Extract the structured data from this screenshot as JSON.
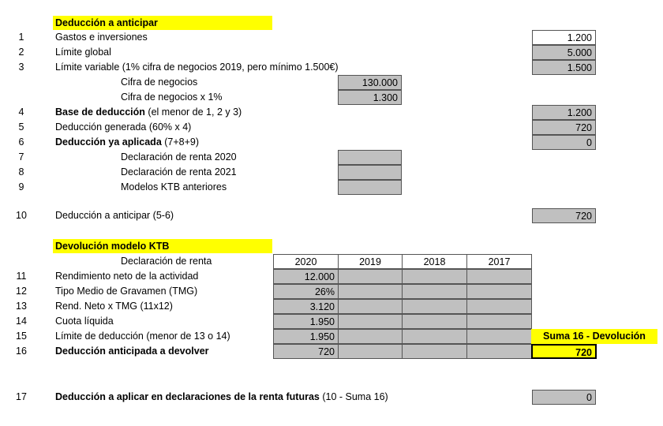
{
  "section1": {
    "title": "Deducción a anticipar",
    "rows": [
      {
        "n": "1",
        "label": "Gastos e inversiones",
        "value": "1.200"
      },
      {
        "n": "2",
        "label": "Límite global",
        "value": "5.000"
      },
      {
        "n": "3",
        "label": "Límite variable (1% cifra de negocios 2019, pero mínimo 1.500€)",
        "value": "1.500"
      },
      {
        "label": "Cifra de negocios",
        "value": "130.000"
      },
      {
        "label": "Cifra de negocios x 1%",
        "value": "1.300"
      },
      {
        "n": "4",
        "bold": "Base de deducción",
        "label": " (el menor de 1, 2 y 3)",
        "value": "1.200"
      },
      {
        "n": "5",
        "label": "Deducción generada (60% x 4)",
        "value": "720"
      },
      {
        "n": "6",
        "bold": "Deducción ya aplicada",
        "label": " (7+8+9)",
        "value": "0"
      },
      {
        "n": "7",
        "label": "Declaración de renta 2020",
        "value": ""
      },
      {
        "n": "8",
        "label": "Declaración de renta 2021",
        "value": ""
      },
      {
        "n": "9",
        "label": "Modelos KTB anteriores",
        "value": ""
      },
      {
        "n": "10",
        "label": "Deducción a anticipar (5-6)",
        "value": "720"
      }
    ]
  },
  "section2": {
    "title": "Devolución modelo KTB",
    "header_label": "Declaración de renta",
    "years": [
      "2020",
      "2019",
      "2018",
      "2017"
    ],
    "rows": [
      {
        "n": "11",
        "label": "Rendimiento neto de la actividad",
        "values": [
          "12.000",
          "",
          "",
          ""
        ]
      },
      {
        "n": "12",
        "label": "Tipo Medio de Gravamen (TMG)",
        "values": [
          "26%",
          "",
          "",
          ""
        ]
      },
      {
        "n": "13",
        "label": "Rend. Neto x TMG (11x12)",
        "values": [
          "3.120",
          "",
          "",
          ""
        ]
      },
      {
        "n": "14",
        "label": "Cuota líquida",
        "values": [
          "1.950",
          "",
          "",
          ""
        ]
      },
      {
        "n": "15",
        "label": "Límite de deducción (menor de 13 o 14)",
        "values": [
          "1.950",
          "",
          "",
          ""
        ]
      },
      {
        "n": "16",
        "label": "Deducción anticipada a devolver",
        "values": [
          "720",
          "",
          "",
          ""
        ]
      }
    ],
    "suma_label": "Suma 16 - Devolución",
    "suma_value": "720"
  },
  "row17": {
    "n": "17",
    "bold": "Deducción a aplicar en declaraciones de la renta futuras",
    "label": " (10 - Suma 16)",
    "value": "0"
  },
  "colors": {
    "highlight": "#ffff00",
    "cell_grey": "#c0c0c0"
  }
}
